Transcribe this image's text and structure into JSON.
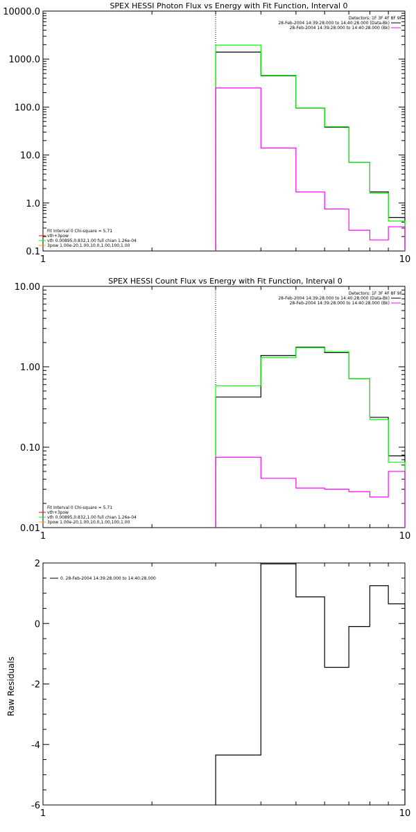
{
  "colors": {
    "background": "#ffffff",
    "axes": "#000000",
    "black": "#000000",
    "green": "#00ff00",
    "magenta": "#ff00ff",
    "red": "#ff0000",
    "orange": "#ffa500"
  },
  "chart_data": [
    {
      "type": "line",
      "title": "SPEX HESSI Photon Flux vs Energy with Fit Function, Interval 0",
      "xlabel": "",
      "ylabel": "",
      "x_scale": "log",
      "y_scale": "log",
      "xlim": [
        1,
        10
      ],
      "ylim": [
        0.1,
        10000
      ],
      "xticks": [
        1,
        10
      ],
      "xtick_labels": [
        "1",
        "10"
      ],
      "yticks": [
        0.1,
        1,
        10,
        100,
        1000,
        10000
      ],
      "ytick_labels": [
        "0.1",
        "1.0",
        "10.0",
        "100.0",
        "1000.0",
        "10000.0"
      ],
      "vline_x": 3,
      "bin_edges": [
        3,
        4,
        5,
        6,
        7,
        8,
        9,
        10
      ],
      "detectors_label": "Detectors: 1F 3F 4F 8F 9F",
      "legend_top": [
        {
          "text": "28-Feb-2004 14:39:28.000 to 14:40:28.000 (Data-Bk)",
          "color": "#000000"
        },
        {
          "text": "28-Feb-2004 14:39:28.000 to 14:40:28.000 (Bk)",
          "color": "#ff00ff"
        }
      ],
      "legend_bottom": [
        {
          "text": "Fit Interval 0   Chi-square = 5.71",
          "color": "#000000"
        },
        {
          "text": "vth+3pow",
          "color": "#ff0000"
        },
        {
          "text": "vth 0.00895,0.832,1.00  full chian 1.26e-04",
          "color": "#00ff00"
        },
        {
          "text": "3pow 1.00e-20,1.00,10.0,1.00,100,1.00",
          "color": "#ffa500"
        }
      ],
      "series": [
        {
          "color": "#000000",
          "values": [
            1400,
            450,
            95,
            38,
            7,
            1.7,
            0.5
          ]
        },
        {
          "color": "#00ff00",
          "values": [
            1950,
            460,
            96,
            39,
            7,
            1.6,
            0.42
          ]
        },
        {
          "color": "#ff00ff",
          "values": [
            250,
            14,
            1.7,
            0.75,
            0.27,
            0.17,
            0.32
          ]
        }
      ]
    },
    {
      "type": "line",
      "title": "SPEX HESSI Count Flux vs Energy with Fit Function, Interval 0",
      "xlabel": "",
      "ylabel": "",
      "x_scale": "log",
      "y_scale": "log",
      "xlim": [
        1,
        10
      ],
      "ylim": [
        0.01,
        10
      ],
      "xticks": [
        1,
        10
      ],
      "xtick_labels": [
        "1",
        "10"
      ],
      "yticks": [
        0.01,
        0.1,
        1,
        10
      ],
      "ytick_labels": [
        "0.01",
        "0.10",
        "1.00",
        "10.00"
      ],
      "vline_x": 3,
      "bin_edges": [
        3,
        4,
        5,
        6,
        7,
        8,
        9,
        10
      ],
      "detectors_label": "Detectors: 1F 3F 4F 8F 9F",
      "legend_top": [
        {
          "text": "28-Feb-2004 14:39:28.000 to 14:40:28.000 (Data-Bk)",
          "color": "#000000"
        },
        {
          "text": "28-Feb-2004 14:39:28.000 to 14:40:28.000 (Bk)",
          "color": "#ff00ff"
        }
      ],
      "legend_bottom": [
        {
          "text": "Fit Interval 0   Chi-square = 5.71",
          "color": "#000000"
        },
        {
          "text": "vth+3pow",
          "color": "#ff0000"
        },
        {
          "text": "vth 0.00895,0.832,1.00  full chian 1.26e-04",
          "color": "#00ff00"
        },
        {
          "text": "3pow 1.00e-20,1.00,10.0,1.00,100,1.00",
          "color": "#ffa500"
        }
      ],
      "series": [
        {
          "color": "#000000",
          "values": [
            0.42,
            1.38,
            1.75,
            1.5,
            0.71,
            0.235,
            0.078
          ]
        },
        {
          "color": "#00ff00",
          "values": [
            0.58,
            1.3,
            1.72,
            1.55,
            0.71,
            0.22,
            0.065
          ]
        },
        {
          "color": "#ff00ff",
          "values": [
            0.075,
            0.041,
            0.031,
            0.03,
            0.028,
            0.024,
            0.05
          ]
        }
      ]
    },
    {
      "type": "line",
      "title": "",
      "xlabel": "",
      "ylabel": "Raw Residuals",
      "x_scale": "log",
      "y_scale": "linear",
      "xlim": [
        1,
        10
      ],
      "ylim": [
        -6,
        2
      ],
      "xticks": [
        1,
        10
      ],
      "xtick_labels": [
        "1",
        "10"
      ],
      "yticks": [
        -6,
        -4,
        -2,
        0,
        2
      ],
      "ytick_labels": [
        "-6",
        "-4",
        "-2",
        "0",
        "2"
      ],
      "bin_edges": [
        3,
        4,
        5,
        6,
        7,
        8,
        9,
        10
      ],
      "legend_top": [
        {
          "text": "0. 28-Feb-2004 14:39:28.000 to 14:40:28.000",
          "color": "#000000"
        }
      ],
      "series": [
        {
          "color": "#000000",
          "values": [
            -4.35,
            1.97,
            0.88,
            -1.45,
            -0.1,
            1.25,
            0.65
          ]
        }
      ]
    }
  ]
}
